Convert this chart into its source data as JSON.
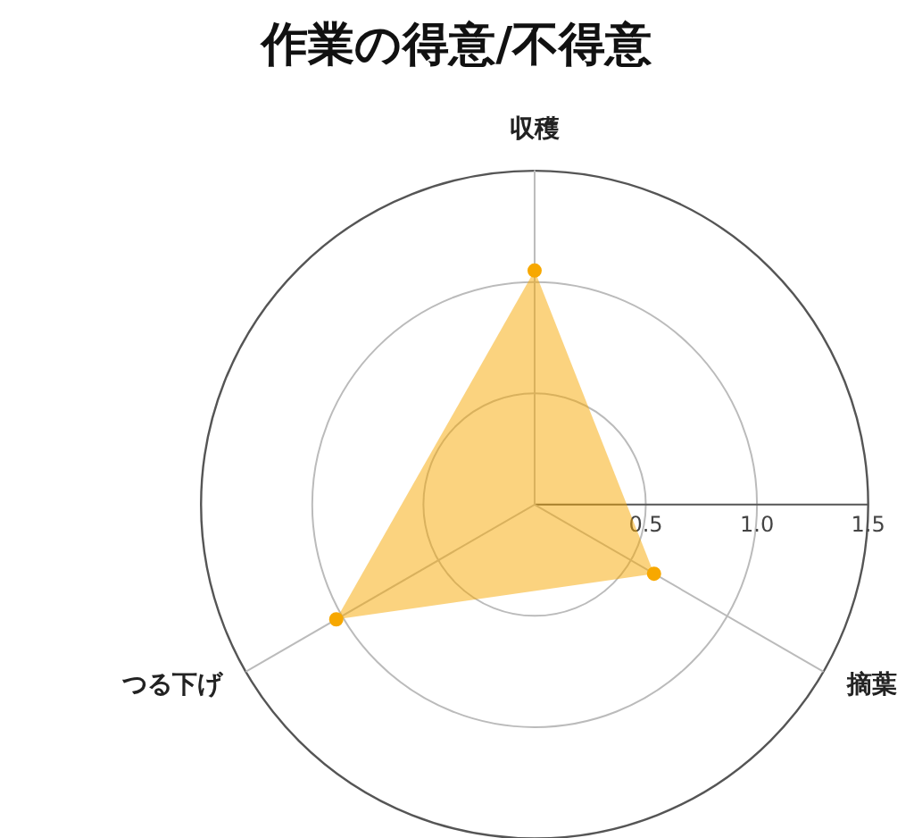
{
  "chart_data": {
    "type": "radar",
    "title": "作業の得意/不得意",
    "categories": [
      "収穫",
      "摘葉",
      "つる下げ"
    ],
    "series": [
      {
        "color": "#f7a800",
        "values": [
          1.05,
          0.62,
          1.03
        ]
      }
    ],
    "ylim": [
      0,
      1.5
    ],
    "yticks": [
      0.5,
      {
        "value": 1,
        "label": "1.0"
      },
      1.5
    ],
    "marker": "circle"
  }
}
